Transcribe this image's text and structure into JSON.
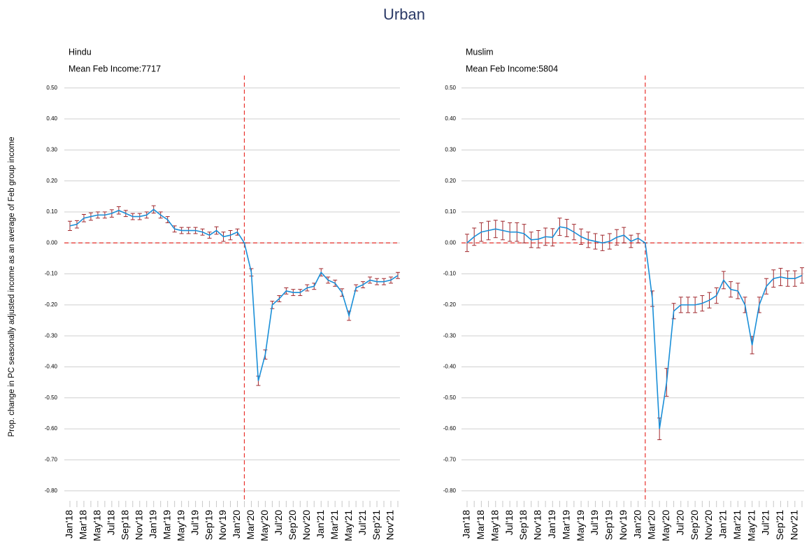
{
  "title": "Urban",
  "ylabel": "Prop. change in PC seasonally adjusted income as an average of Feb group income",
  "chart_data": [
    {
      "type": "line",
      "title": "Hindu",
      "subtitle": "Mean Feb Income:7717",
      "categories": [
        "Jan'18",
        null,
        "Mar'18",
        null,
        "May'18",
        null,
        "Jul'18",
        null,
        "Sep'18",
        null,
        "Nov'18",
        null,
        "Jan'19",
        null,
        "Mar'19",
        null,
        "May'19",
        null,
        "Jul'19",
        null,
        "Sep'19",
        null,
        "Nov'19",
        null,
        "Jan'20",
        null,
        "Mar'20",
        null,
        "May'20",
        null,
        "Jul'20",
        null,
        "Sep'20",
        null,
        "Nov'20",
        null,
        "Jan'21",
        null,
        "Mar'21",
        null,
        "May'21",
        null,
        "Jul'21",
        null,
        "Sep'21",
        null,
        "Nov'21",
        null
      ],
      "series": [
        {
          "color": "#1a8fd8",
          "error_color": "#a0282d",
          "values": [
            0.055,
            0.06,
            0.08,
            0.085,
            0.09,
            0.09,
            0.095,
            0.105,
            0.095,
            0.085,
            0.085,
            0.09,
            0.108,
            0.09,
            0.075,
            0.045,
            0.04,
            0.04,
            0.04,
            0.035,
            0.025,
            0.04,
            0.02,
            0.025,
            0.035,
            0.0,
            -0.095,
            -0.445,
            -0.36,
            -0.2,
            -0.18,
            -0.155,
            -0.16,
            -0.16,
            -0.145,
            -0.14,
            -0.095,
            -0.12,
            -0.13,
            -0.16,
            -0.235,
            -0.145,
            -0.135,
            -0.12,
            -0.125,
            -0.125,
            -0.12,
            -0.105
          ],
          "errors": [
            0.015,
            0.012,
            0.012,
            0.012,
            0.01,
            0.01,
            0.012,
            0.012,
            0.01,
            0.01,
            0.01,
            0.01,
            0.012,
            0.01,
            0.01,
            0.01,
            0.01,
            0.01,
            0.01,
            0.01,
            0.01,
            0.012,
            0.015,
            0.015,
            0.01,
            0.0,
            0.012,
            0.015,
            0.015,
            0.012,
            0.01,
            0.01,
            0.01,
            0.01,
            0.01,
            0.01,
            0.012,
            0.01,
            0.01,
            0.012,
            0.015,
            0.01,
            0.01,
            0.01,
            0.01,
            0.01,
            0.01,
            0.01
          ]
        }
      ],
      "ylim": [
        -0.83,
        0.54
      ],
      "yticks": [
        {
          "value": 0.5,
          "label": "0.50"
        },
        {
          "value": 0.4,
          "label": "0.40"
        },
        {
          "value": 0.3,
          "label": "0.30"
        },
        {
          "value": 0.2,
          "label": "0.20"
        },
        {
          "value": 0.1,
          "label": "0.10"
        },
        {
          "value": 0,
          "label": "0.00"
        },
        {
          "value": -0.1,
          "label": "-0.10"
        },
        {
          "value": -0.2,
          "label": "-0.20"
        },
        {
          "value": -0.3,
          "label": "-0.30"
        },
        {
          "value": -0.4,
          "label": "-0.40"
        },
        {
          "value": -0.5,
          "label": "-0.50"
        },
        {
          "value": -0.6,
          "label": "-0.60"
        },
        {
          "value": -0.7,
          "label": "-0.70"
        },
        {
          "value": -0.8,
          "label": "-0.80"
        }
      ],
      "grid": true,
      "hline": 0,
      "vline_at": 25,
      "reference_color": "#e8322d"
    },
    {
      "type": "line",
      "title": "Muslim",
      "subtitle": "Mean Feb Income:5804",
      "categories": [
        "Jan'18",
        null,
        "Mar'18",
        null,
        "May'18",
        null,
        "Jul'18",
        null,
        "Sep'18",
        null,
        "Nov'18",
        null,
        "Jan'19",
        null,
        "Mar'19",
        null,
        "May'19",
        null,
        "Jul'19",
        null,
        "Sep'19",
        null,
        "Nov'19",
        null,
        "Jan'20",
        null,
        "Mar'20",
        null,
        "May'20",
        null,
        "Jul'20",
        null,
        "Sep'20",
        null,
        "Nov'20",
        null,
        "Jan'21",
        null,
        "Mar'21",
        null,
        "May'21",
        null,
        "Jul'21",
        null,
        "Sep'21",
        null,
        "Nov'21",
        null
      ],
      "series": [
        {
          "color": "#1a8fd8",
          "error_color": "#a0282d",
          "values": [
            0.0,
            0.02,
            0.035,
            0.04,
            0.045,
            0.04,
            0.035,
            0.035,
            0.03,
            0.01,
            0.012,
            0.02,
            0.018,
            0.052,
            0.048,
            0.035,
            0.02,
            0.01,
            0.005,
            0.0,
            0.005,
            0.018,
            0.025,
            0.005,
            0.015,
            0.0,
            -0.18,
            -0.6,
            -0.45,
            -0.22,
            -0.2,
            -0.2,
            -0.2,
            -0.195,
            -0.185,
            -0.17,
            -0.12,
            -0.15,
            -0.155,
            -0.2,
            -0.33,
            -0.2,
            -0.14,
            -0.115,
            -0.11,
            -0.115,
            -0.115,
            -0.105
          ],
          "errors": [
            0.028,
            0.028,
            0.03,
            0.03,
            0.028,
            0.03,
            0.03,
            0.03,
            0.03,
            0.025,
            0.028,
            0.028,
            0.028,
            0.028,
            0.028,
            0.025,
            0.025,
            0.025,
            0.025,
            0.025,
            0.025,
            0.025,
            0.025,
            0.02,
            0.015,
            0.0,
            0.025,
            0.035,
            0.045,
            0.025,
            0.025,
            0.025,
            0.025,
            0.025,
            0.025,
            0.025,
            0.028,
            0.025,
            0.025,
            0.025,
            0.028,
            0.025,
            0.025,
            0.028,
            0.028,
            0.025,
            0.025,
            0.025
          ]
        }
      ],
      "ylim": [
        -0.83,
        0.54
      ],
      "yticks": [
        {
          "value": 0.5,
          "label": "0.50"
        },
        {
          "value": 0.4,
          "label": "0.40"
        },
        {
          "value": 0.3,
          "label": "0.30"
        },
        {
          "value": 0.2,
          "label": "0.20"
        },
        {
          "value": 0.1,
          "label": "0.10"
        },
        {
          "value": 0,
          "label": "0.00"
        },
        {
          "value": -0.1,
          "label": "-0.10"
        },
        {
          "value": -0.2,
          "label": "-0.20"
        },
        {
          "value": -0.3,
          "label": "-0.30"
        },
        {
          "value": -0.4,
          "label": "-0.40"
        },
        {
          "value": -0.5,
          "label": "-0.50"
        },
        {
          "value": -0.6,
          "label": "-0.60"
        },
        {
          "value": -0.7,
          "label": "-0.70"
        },
        {
          "value": -0.8,
          "label": "-0.80"
        }
      ],
      "grid": true,
      "hline": 0,
      "vline_at": 25,
      "reference_color": "#e8322d"
    }
  ]
}
